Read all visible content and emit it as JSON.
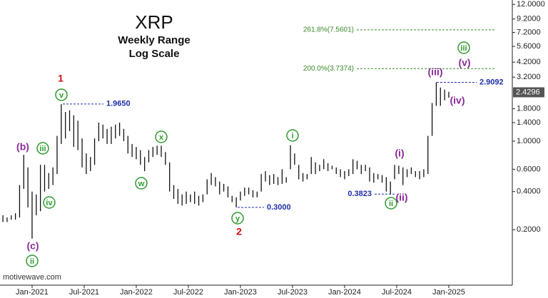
{
  "chart_data": {
    "type": "range",
    "title": "XRP",
    "subtitle": "Weekly Range",
    "scale_note": "Log Scale",
    "watermark": "motivewave.com",
    "log_scale": true,
    "grid": false,
    "color": "#111111",
    "xlim": [
      2020.692,
      2025.61
    ],
    "ylim": [
      0.073,
      13
    ],
    "xticks": [
      {
        "value": 2021,
        "label": "Jan-2021"
      },
      {
        "value": 2021.5,
        "label": "Jul-2021"
      },
      {
        "value": 2022,
        "label": "Jan-2022"
      },
      {
        "value": 2022.5,
        "label": "Jul-2022"
      },
      {
        "value": 2023,
        "label": "Jan-2023"
      },
      {
        "value": 2023.5,
        "label": "Jul-2023"
      },
      {
        "value": 2024,
        "label": "Jan-2024"
      },
      {
        "value": 2024.5,
        "label": "Jul-2024"
      },
      {
        "value": 2025,
        "label": "Jan-2025"
      }
    ],
    "yticks": [
      {
        "value": 12,
        "label": "12.0000"
      },
      {
        "value": 9.2,
        "label": "9.2000"
      },
      {
        "value": 7.2,
        "label": "7.2000"
      },
      {
        "value": 5.6,
        "label": "5.6000"
      },
      {
        "value": 4.2,
        "label": "4.2000"
      },
      {
        "value": 3.2,
        "label": "3.2000"
      },
      {
        "value": 1.8,
        "label": "1.8000"
      },
      {
        "value": 1.4,
        "label": "1.4000"
      },
      {
        "value": 1,
        "label": "1.0000"
      },
      {
        "value": 0.6,
        "label": "0.6000"
      },
      {
        "value": 0.4,
        "label": "0.4000"
      },
      {
        "value": 0.2,
        "label": "0.2000"
      }
    ],
    "last_price": 2.4296,
    "x": [
      2020.72,
      2020.76,
      2020.8,
      2020.84,
      2020.88,
      2020.92,
      2020.96,
      2021,
      2021.04,
      2021.08,
      2021.12,
      2021.16,
      2021.2,
      2021.24,
      2021.28,
      2021.32,
      2021.36,
      2021.4,
      2021.44,
      2021.48,
      2021.52,
      2021.56,
      2021.6,
      2021.64,
      2021.68,
      2021.72,
      2021.76,
      2021.8,
      2021.84,
      2021.88,
      2021.92,
      2021.96,
      2022,
      2022.04,
      2022.08,
      2022.12,
      2022.16,
      2022.2,
      2022.24,
      2022.28,
      2022.32,
      2022.36,
      2022.4,
      2022.44,
      2022.48,
      2022.52,
      2022.56,
      2022.6,
      2022.64,
      2022.68,
      2022.72,
      2022.76,
      2022.8,
      2022.84,
      2022.88,
      2022.92,
      2022.96,
      2023,
      2023.04,
      2023.08,
      2023.12,
      2023.16,
      2023.2,
      2023.24,
      2023.28,
      2023.32,
      2023.36,
      2023.4,
      2023.44,
      2023.48,
      2023.52,
      2023.56,
      2023.6,
      2023.64,
      2023.68,
      2023.72,
      2023.76,
      2023.8,
      2023.84,
      2023.88,
      2023.92,
      2023.96,
      2024,
      2024.04,
      2024.08,
      2024.12,
      2024.16,
      2024.2,
      2024.24,
      2024.28,
      2024.32,
      2024.36,
      2024.4,
      2024.44,
      2024.48,
      2024.52,
      2024.56,
      2024.6,
      2024.64,
      2024.68,
      2024.72,
      2024.76,
      2024.8,
      2024.84,
      2024.88,
      2024.92,
      2024.96,
      2025
    ],
    "low": [
      0.23,
      0.23,
      0.24,
      0.24,
      0.25,
      0.42,
      0.3,
      0.17,
      0.26,
      0.28,
      0.4,
      0.42,
      0.45,
      0.55,
      0.95,
      1.05,
      1.2,
      0.9,
      0.85,
      0.62,
      0.55,
      0.58,
      0.65,
      1.0,
      1.05,
      0.95,
      0.95,
      1.05,
      1.1,
      1.0,
      0.8,
      0.75,
      0.72,
      0.65,
      0.58,
      0.68,
      0.75,
      0.78,
      0.75,
      0.65,
      0.4,
      0.35,
      0.32,
      0.31,
      0.32,
      0.33,
      0.32,
      0.31,
      0.33,
      0.38,
      0.45,
      0.44,
      0.38,
      0.4,
      0.36,
      0.33,
      0.3,
      0.34,
      0.37,
      0.38,
      0.36,
      0.36,
      0.4,
      0.48,
      0.45,
      0.46,
      0.45,
      0.46,
      0.47,
      0.6,
      0.65,
      0.5,
      0.48,
      0.5,
      0.55,
      0.55,
      0.58,
      0.6,
      0.58,
      0.6,
      0.55,
      0.52,
      0.5,
      0.53,
      0.55,
      0.6,
      0.55,
      0.58,
      0.48,
      0.47,
      0.5,
      0.47,
      0.4,
      0.38,
      0.5,
      0.55,
      0.45,
      0.52,
      0.55,
      0.52,
      0.5,
      0.52,
      0.55,
      1.1,
      1.9,
      1.9,
      2.1,
      2.2
    ],
    "high": [
      0.26,
      0.25,
      0.26,
      0.27,
      0.45,
      0.78,
      0.62,
      0.4,
      0.38,
      0.65,
      0.65,
      0.56,
      0.62,
      1.1,
      1.96,
      1.7,
      1.75,
      1.6,
      1.45,
      1.05,
      0.8,
      0.75,
      1.05,
      1.4,
      1.35,
      1.25,
      1.3,
      1.35,
      1.4,
      1.25,
      1.1,
      0.95,
      0.9,
      0.85,
      0.75,
      0.85,
      0.9,
      0.92,
      0.92,
      0.82,
      0.68,
      0.45,
      0.42,
      0.38,
      0.4,
      0.38,
      0.4,
      0.37,
      0.38,
      0.5,
      0.56,
      0.52,
      0.48,
      0.46,
      0.44,
      0.37,
      0.36,
      0.4,
      0.43,
      0.43,
      0.41,
      0.4,
      0.55,
      0.58,
      0.54,
      0.55,
      0.52,
      0.6,
      0.52,
      0.93,
      0.8,
      0.65,
      0.56,
      0.55,
      0.75,
      0.68,
      0.65,
      0.72,
      0.67,
      0.64,
      0.62,
      0.6,
      0.58,
      0.6,
      0.72,
      0.7,
      0.65,
      0.65,
      0.62,
      0.56,
      0.55,
      0.54,
      0.52,
      0.48,
      0.65,
      0.64,
      0.62,
      0.6,
      0.62,
      0.58,
      0.58,
      0.6,
      1.1,
      2.0,
      2.91,
      2.65,
      2.55,
      2.45
    ],
    "levels": [
      {
        "value": 1.965,
        "label": "1.9650",
        "color": "#1f2fa8"
      },
      {
        "value": 0.3,
        "label": "0.3000",
        "color": "#1f2fa8"
      },
      {
        "value": 0.3823,
        "label": "0.3823",
        "color": "#1f2fa8"
      },
      {
        "value": 2.9092,
        "label": "2.9092",
        "color": "#1f2fa8"
      },
      {
        "value": 7.5601,
        "label": "261.8%(7.5601)",
        "color": "#3a8a2a"
      },
      {
        "value": 3.7374,
        "label": "200.0%(3.7374)",
        "color": "#3a8a2a"
      }
    ],
    "wave_labels": [
      {
        "text": "1",
        "color": "#d01010",
        "circled": false
      },
      {
        "text": "v",
        "color": "#2e9a2e",
        "circled": true
      },
      {
        "text": "(b)",
        "color": "#8a2a9a",
        "circled": false
      },
      {
        "text": "iii",
        "color": "#2e9a2e",
        "circled": true
      },
      {
        "text": "iv",
        "color": "#2e9a2e",
        "circled": true
      },
      {
        "text": "(c)",
        "color": "#8a2a9a",
        "circled": false
      },
      {
        "text": "ii",
        "color": "#2e9a2e",
        "circled": true
      },
      {
        "text": "x",
        "color": "#2e9a2e",
        "circled": true
      },
      {
        "text": "w",
        "color": "#2e9a2e",
        "circled": true
      },
      {
        "text": "y",
        "color": "#2e9a2e",
        "circled": true
      },
      {
        "text": "2",
        "color": "#d01010",
        "circled": false
      },
      {
        "text": "i",
        "color": "#2e9a2e",
        "circled": true
      },
      {
        "text": "(i)",
        "color": "#8a2a9a",
        "circled": false
      },
      {
        "text": "(ii)",
        "color": "#8a2a9a",
        "circled": false
      },
      {
        "text": "ii",
        "color": "#2e9a2e",
        "circled": true
      },
      {
        "text": "(iii)",
        "color": "#8a2a9a",
        "circled": false
      },
      {
        "text": "(iv)",
        "color": "#8a2a9a",
        "circled": false
      },
      {
        "text": "(v)",
        "color": "#8a2a9a",
        "circled": false
      },
      {
        "text": "iii",
        "color": "#2e9a2e",
        "circled": true
      }
    ]
  }
}
